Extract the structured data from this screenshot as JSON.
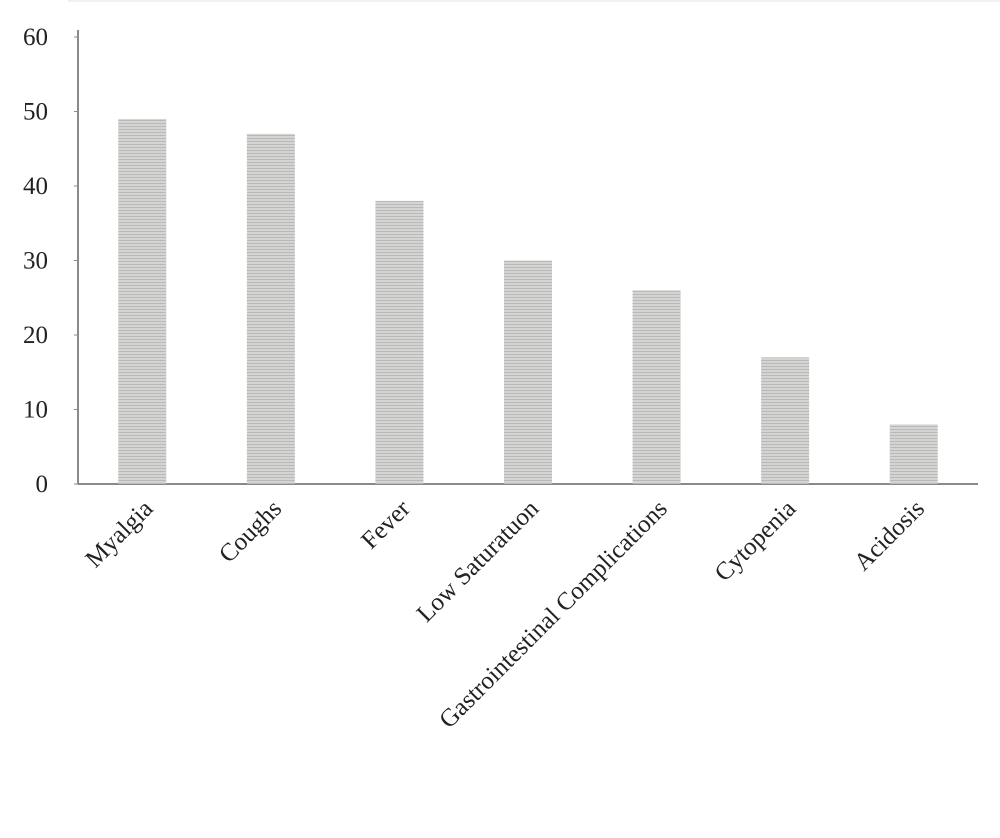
{
  "chart_data": {
    "type": "bar",
    "categories": [
      "Myalgia",
      "Coughs",
      "Fever",
      "Low Saturatuon",
      "Gastrointestinal Complications",
      "Cytopenia",
      "Acidosis"
    ],
    "values": [
      49,
      47,
      38,
      30,
      26,
      17,
      8
    ],
    "color": "#c8c8c6",
    "ylim": [
      0,
      60
    ],
    "yticks": [
      0,
      10,
      20,
      30,
      40,
      50,
      60
    ],
    "grid": false
  }
}
